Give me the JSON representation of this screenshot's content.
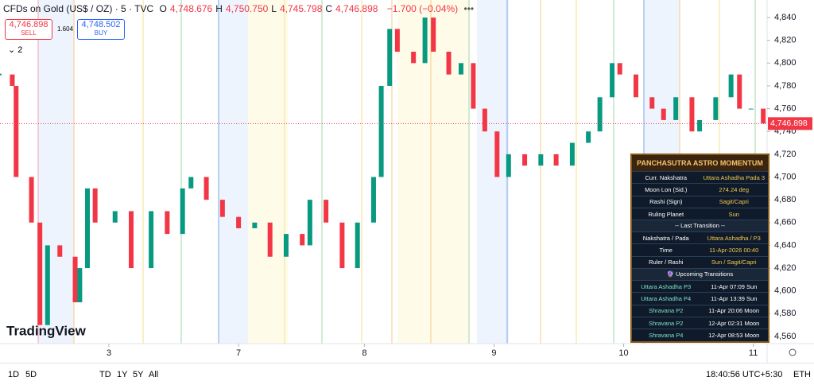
{
  "toolbar": {
    "symbol": "CFDs on Gold (US$ / OZ) · 5 · TVC",
    "ohlc": [
      {
        "key": "O",
        "value": "4,748.676"
      },
      {
        "key": "H",
        "value": "4,750.750"
      },
      {
        "key": "L",
        "value": "4,745.798"
      },
      {
        "key": "C",
        "value": "4,746.898"
      }
    ],
    "change": "−1.700 (−0.04%)",
    "sell_price": "4,746.898",
    "sell": "SELL",
    "spread": "1.604",
    "buy_price": "4,748.502",
    "buy": "BUY",
    "indicators": "2",
    "logo": "TradingView"
  },
  "chart_data": {
    "type": "candlestick",
    "x": [
      0,
      1.6,
      2.1,
      4.1,
      5.2,
      6.2,
      7.8,
      9.8,
      10.4,
      11.4,
      12.4,
      15.0,
      17.1,
      19.7,
      21.8,
      23.8,
      24.9,
      26.9,
      29.0,
      31.1,
      33.2,
      35.2,
      37.3,
      39.4,
      40.4,
      42.5,
      44.6,
      46.6,
      48.7,
      49.7,
      50.8,
      51.8,
      53.9,
      55.4,
      56.5,
      58.5,
      60.1,
      61.7,
      63.2,
      64.8,
      66.3,
      68.4,
      70.5,
      72.5,
      74.6,
      76.7,
      78.2,
      79.8,
      80.8,
      82.9,
      85.0,
      86.5,
      88.1,
      90.2,
      91.2,
      93.3,
      95.3,
      96.4,
      97.9,
      99.5
    ],
    "values": [
      4790,
      4780,
      4700,
      4660,
      4570,
      4640,
      4630,
      4590,
      4620,
      4690,
      4660,
      4670,
      4620,
      4670,
      4650,
      4690,
      4700,
      4680,
      4665,
      4655,
      4660,
      4630,
      4650,
      4640,
      4680,
      4660,
      4620,
      4660,
      4700,
      4780,
      4830,
      4810,
      4800,
      4840,
      4810,
      4790,
      4800,
      4760,
      4740,
      4700,
      4720,
      4710,
      4720,
      4710,
      4730,
      4740,
      4770,
      4800,
      4790,
      4770,
      4760,
      4750,
      4770,
      4740,
      4750,
      4770,
      4790,
      4760,
      4760,
      4747
    ],
    "up_color": "#089981",
    "down_color": "#f23645",
    "xlim": [
      0,
      100
    ],
    "xticks": [
      {
        "value": 14.2,
        "label": "3"
      },
      {
        "value": 31.1,
        "label": "7"
      },
      {
        "value": 47.5,
        "label": "8"
      },
      {
        "value": 64.4,
        "label": "9"
      },
      {
        "value": 81.3,
        "label": "10"
      },
      {
        "value": 98.2,
        "label": "11"
      }
    ],
    "ylim": [
      4551.6,
      4855.4
    ],
    "yticks": [
      {
        "value": 4560,
        "label": "4,560"
      },
      {
        "value": 4580,
        "label": "4,580"
      },
      {
        "value": 4600,
        "label": "4,600"
      },
      {
        "value": 4620,
        "label": "4,620"
      },
      {
        "value": 4640,
        "label": "4,640"
      },
      {
        "value": 4660,
        "label": "4,660"
      },
      {
        "value": 4680,
        "label": "4,680"
      },
      {
        "value": 4700,
        "label": "4,700"
      },
      {
        "value": 4720,
        "label": "4,720"
      },
      {
        "value": 4740,
        "label": "4,740"
      },
      {
        "value": 4760,
        "label": "4,760"
      },
      {
        "value": 4780,
        "label": "4,780"
      },
      {
        "value": 4800,
        "label": "4,800"
      },
      {
        "value": 4820,
        "label": "4,820"
      },
      {
        "value": 4840,
        "label": "4,840"
      }
    ],
    "last_price": {
      "value": 4746.898,
      "label": "4,746.898"
    }
  },
  "panel": {
    "title": "PANCHASUTRA ASTRO MOMENTUM",
    "rows": [
      [
        "Curr. Nakshatra",
        "Uttara Ashadha Pada 3"
      ],
      [
        "Moon Lon (Sid.)",
        "274.24 deg"
      ],
      [
        "Rashi (Sign)",
        "Sagit/Capri"
      ],
      [
        "Ruling Planet",
        "Sun"
      ]
    ],
    "last_header": "-- Last Transition --",
    "last_rows": [
      [
        "Nakshatra / Pada",
        "Uttara Ashadha / P3"
      ],
      [
        "Time",
        "11-Apr-2026 00:40"
      ],
      [
        "Ruler / Rashi",
        "Sun / Sagit/Capri"
      ]
    ],
    "upcoming_header": "🔮 Upcoming Transitions",
    "upcoming": [
      [
        "Uttara Ashadha P3",
        "11-Apr 07:09  Sun"
      ],
      [
        "Uttara Ashadha P4",
        "11-Apr 13:39  Sun"
      ],
      [
        "Shravana P2",
        "11-Apr 20:06  Moon"
      ],
      [
        "Shravana P2",
        "12-Apr 02:31  Moon"
      ],
      [
        "Shravana P4",
        "12-Apr 08:53  Moon"
      ]
    ]
  },
  "bottom": {
    "ranges": [
      "1D",
      "5D",
      "TD",
      "1Y",
      "5Y",
      "All"
    ],
    "clock": "18:40:56 UTC+5:30",
    "session": "ETH"
  }
}
